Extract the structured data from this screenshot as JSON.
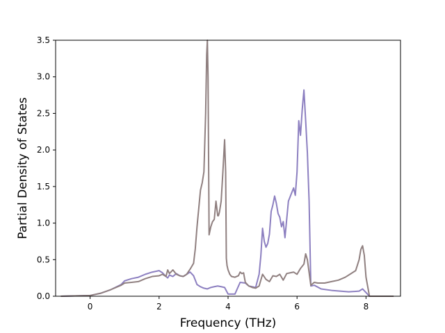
{
  "chart_data": {
    "type": "line",
    "title": "",
    "xlabel": "Frequency (THz)",
    "ylabel": "Partial Density of States",
    "xlim": [
      -1.0,
      9.0
    ],
    "ylim": [
      0.0,
      3.5
    ],
    "xticks": [
      "0",
      "2",
      "4",
      "6",
      "8"
    ],
    "yticks": [
      "0.0",
      "0.5",
      "1.0",
      "1.5",
      "2.0",
      "2.5",
      "3.0",
      "3.5"
    ],
    "grid": false,
    "legend": "none",
    "series": [
      {
        "color": "#8c7fc0",
        "x": [
          -0.85,
          0.0,
          0.3,
          0.6,
          0.9,
          1.0,
          1.2,
          1.4,
          1.6,
          1.8,
          2.0,
          2.1,
          2.2,
          2.25,
          2.3,
          2.4,
          2.5,
          2.6,
          2.7,
          2.8,
          2.9,
          3.0,
          3.1,
          3.2,
          3.3,
          3.4,
          3.5,
          3.6,
          3.7,
          3.8,
          3.9,
          4.0,
          4.2,
          4.35,
          4.5,
          4.6,
          4.8,
          4.9,
          4.95,
          5.0,
          5.05,
          5.1,
          5.15,
          5.2,
          5.25,
          5.3,
          5.35,
          5.4,
          5.45,
          5.5,
          5.55,
          5.6,
          5.65,
          5.7,
          5.75,
          5.8,
          5.85,
          5.9,
          5.95,
          6.0,
          6.05,
          6.1,
          6.15,
          6.2,
          6.25,
          6.3,
          6.35,
          6.4,
          6.5,
          6.7,
          7.0,
          7.5,
          7.8,
          7.9,
          8.0,
          8.1,
          8.8
        ],
        "y": [
          0.0,
          0.01,
          0.04,
          0.09,
          0.16,
          0.21,
          0.24,
          0.26,
          0.3,
          0.33,
          0.35,
          0.32,
          0.27,
          0.25,
          0.29,
          0.27,
          0.31,
          0.28,
          0.27,
          0.3,
          0.33,
          0.28,
          0.16,
          0.13,
          0.11,
          0.1,
          0.12,
          0.13,
          0.14,
          0.13,
          0.12,
          0.03,
          0.03,
          0.19,
          0.18,
          0.14,
          0.12,
          0.3,
          0.55,
          0.93,
          0.75,
          0.67,
          0.72,
          0.85,
          1.16,
          1.25,
          1.37,
          1.27,
          1.13,
          1.08,
          0.95,
          1.02,
          0.8,
          1.05,
          1.3,
          1.36,
          1.42,
          1.48,
          1.38,
          1.7,
          2.4,
          2.2,
          2.55,
          2.82,
          2.4,
          1.96,
          1.3,
          0.14,
          0.15,
          0.1,
          0.08,
          0.06,
          0.07,
          0.1,
          0.05,
          0.0,
          0.0
        ]
      },
      {
        "color": "#8f7f7f",
        "x": [
          -0.85,
          0.0,
          0.3,
          0.6,
          0.9,
          1.0,
          1.2,
          1.4,
          1.6,
          1.8,
          2.0,
          2.1,
          2.2,
          2.25,
          2.3,
          2.4,
          2.5,
          2.6,
          2.7,
          2.8,
          2.9,
          3.0,
          3.05,
          3.1,
          3.2,
          3.25,
          3.3,
          3.35,
          3.38,
          3.4,
          3.42,
          3.45,
          3.5,
          3.55,
          3.6,
          3.65,
          3.7,
          3.72,
          3.75,
          3.8,
          3.85,
          3.9,
          3.93,
          3.95,
          3.97,
          4.0,
          4.05,
          4.1,
          4.2,
          4.3,
          4.35,
          4.4,
          4.45,
          4.5,
          4.6,
          4.7,
          4.8,
          4.9,
          5.0,
          5.1,
          5.2,
          5.3,
          5.4,
          5.5,
          5.6,
          5.7,
          5.8,
          5.9,
          6.0,
          6.1,
          6.2,
          6.25,
          6.3,
          6.4,
          6.5,
          6.6,
          6.8,
          7.0,
          7.2,
          7.4,
          7.6,
          7.7,
          7.8,
          7.85,
          7.9,
          7.95,
          8.0,
          8.1,
          8.8
        ],
        "y": [
          0.0,
          0.01,
          0.04,
          0.09,
          0.15,
          0.18,
          0.19,
          0.2,
          0.24,
          0.27,
          0.28,
          0.3,
          0.27,
          0.36,
          0.31,
          0.36,
          0.3,
          0.28,
          0.27,
          0.3,
          0.37,
          0.45,
          0.65,
          0.95,
          1.45,
          1.55,
          1.7,
          2.5,
          3.3,
          3.5,
          3.0,
          0.84,
          0.95,
          1.02,
          1.05,
          1.3,
          1.1,
          1.1,
          1.15,
          1.3,
          1.7,
          2.14,
          1.7,
          0.52,
          0.42,
          0.36,
          0.3,
          0.27,
          0.26,
          0.28,
          0.33,
          0.31,
          0.32,
          0.19,
          0.14,
          0.12,
          0.11,
          0.14,
          0.3,
          0.23,
          0.2,
          0.28,
          0.27,
          0.3,
          0.22,
          0.31,
          0.32,
          0.33,
          0.3,
          0.38,
          0.44,
          0.58,
          0.5,
          0.15,
          0.19,
          0.18,
          0.18,
          0.2,
          0.22,
          0.26,
          0.32,
          0.35,
          0.5,
          0.64,
          0.69,
          0.56,
          0.26,
          0.0,
          0.0
        ]
      }
    ]
  }
}
